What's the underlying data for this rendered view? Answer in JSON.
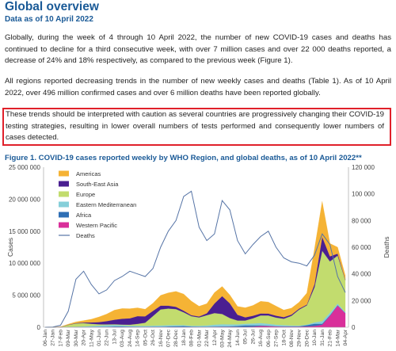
{
  "header": {
    "title": "Global overview",
    "subtitle": "Data as of 10 April 2022"
  },
  "paragraphs": {
    "p1": "Globally, during the week of 4 through 10 April 2022, the number of new COVID-19 cases and deaths has continued to decline for a third consecutive week, with over 7 million cases and over 22 000 deaths reported, a decrease of 24% and 18% respectively, as compared to the previous week (Figure 1).",
    "p2": "All regions reported decreasing trends in the number of new weekly cases and deaths (Table 1). As of 10 April 2022, over 496 million confirmed cases and over 6 million deaths have been reported globally.",
    "p3": "These trends should be interpreted with caution as several countries are progressively changing their COVID-19 testing strategies, resulting in lower overall numbers of tests performed and consequently lower numbers of cases detected."
  },
  "figure": {
    "title": "Figure 1. COVID-19 cases reported weekly by WHO Region, and global deaths, as of 10 April 2022**"
  },
  "colors": {
    "title_blue": "#1a5a97",
    "highlight_red": "#e0202a",
    "americas": "#f5b335",
    "south_east_asia": "#4a1f91",
    "europe": "#c2dc6e",
    "eastern_mediterranean": "#86cfd9",
    "africa": "#2f6fb5",
    "western_pacific": "#d92f9a",
    "deaths": "#5674a6"
  },
  "chart_data": {
    "type": "area",
    "ylabel": "Cases",
    "y2label": "Deaths",
    "ylim": [
      0,
      25000000
    ],
    "y2lim": [
      0,
      120000
    ],
    "y_ticks": [
      "0",
      "5 000 000",
      "10 000 000",
      "15 000 000",
      "20 000 000",
      "25 000 000"
    ],
    "y2_ticks": [
      "0",
      "20 000",
      "40 000",
      "60 000",
      "80 000",
      "100 000",
      "120 000"
    ],
    "x_ticks": [
      "06-Jan",
      "27-Jan",
      "17-Feb",
      "09-Mar",
      "30-Mar",
      "20-Apr",
      "11-May",
      "01-Jun",
      "22-Jun",
      "13-Jul",
      "03-Aug",
      "24-Aug",
      "14-Sep",
      "05-Oct",
      "26-Oct",
      "16-Nov",
      "07-Dec",
      "28-Dec",
      "18-Jan",
      "08-Feb",
      "01-Mar",
      "22-Mar",
      "12-Apr",
      "03-May",
      "24-May",
      "14-Jun",
      "05-Jul",
      "26-Jul",
      "16-Aug",
      "06-Sep",
      "27-Sep",
      "18-Oct",
      "08-Nov",
      "29-Nov",
      "20-Dec",
      "10-Jan",
      "31-Jan",
      "21-Feb",
      "14-Mar",
      "04-Apr"
    ],
    "legend": [
      "Americas",
      "South-East Asia",
      "Europe",
      "Eastern Mediterranean",
      "Africa",
      "Western Pacific",
      "Deaths"
    ],
    "series": [
      {
        "name": "Western Pacific",
        "values": [
          0,
          0.01,
          0.02,
          0.04,
          0.03,
          0.02,
          0.02,
          0.02,
          0.02,
          0.02,
          0.02,
          0.02,
          0.02,
          0.02,
          0.03,
          0.03,
          0.04,
          0.04,
          0.04,
          0.03,
          0.03,
          0.03,
          0.05,
          0.06,
          0.06,
          0.05,
          0.05,
          0.1,
          0.2,
          0.18,
          0.12,
          0.1,
          0.1,
          0.1,
          0.12,
          0.2,
          0.4,
          1.8,
          3.4,
          2.2
        ]
      },
      {
        "name": "Africa",
        "values": [
          0,
          0,
          0,
          0,
          0.01,
          0.02,
          0.03,
          0.04,
          0.06,
          0.1,
          0.1,
          0.08,
          0.06,
          0.04,
          0.04,
          0.05,
          0.08,
          0.12,
          0.15,
          0.08,
          0.05,
          0.05,
          0.06,
          0.06,
          0.08,
          0.15,
          0.25,
          0.2,
          0.1,
          0.06,
          0.04,
          0.03,
          0.03,
          0.04,
          0.2,
          0.35,
          0.15,
          0.08,
          0.05,
          0.03
        ]
      },
      {
        "name": "Eastern Mediterranean",
        "values": [
          0,
          0,
          0.01,
          0.02,
          0.05,
          0.1,
          0.15,
          0.2,
          0.25,
          0.25,
          0.2,
          0.15,
          0.15,
          0.15,
          0.18,
          0.2,
          0.2,
          0.18,
          0.15,
          0.12,
          0.15,
          0.2,
          0.3,
          0.35,
          0.3,
          0.25,
          0.25,
          0.3,
          0.35,
          0.3,
          0.25,
          0.2,
          0.15,
          0.12,
          0.1,
          0.2,
          0.4,
          0.4,
          0.25,
          0.15
        ]
      },
      {
        "name": "Europe",
        "values": [
          0,
          0,
          0.02,
          0.3,
          0.5,
          0.5,
          0.35,
          0.2,
          0.12,
          0.1,
          0.1,
          0.15,
          0.3,
          0.5,
          1.5,
          2.5,
          2.6,
          2.5,
          2.0,
          1.5,
          1.3,
          1.6,
          1.8,
          1.6,
          1.0,
          0.6,
          0.5,
          0.8,
          1.2,
          1.3,
          1.1,
          1.0,
          1.5,
          2.5,
          3.0,
          5.5,
          11.0,
          8.0,
          7.5,
          5.0
        ]
      },
      {
        "name": "South-East Asia",
        "values": [
          0,
          0,
          0,
          0.02,
          0.05,
          0.1,
          0.2,
          0.35,
          0.5,
          0.7,
          0.9,
          1.0,
          1.2,
          1.0,
          0.8,
          0.6,
          0.45,
          0.35,
          0.25,
          0.15,
          0.15,
          0.3,
          1.5,
          2.8,
          2.3,
          0.9,
          0.5,
          0.4,
          0.3,
          0.3,
          0.3,
          0.25,
          0.2,
          0.15,
          0.12,
          0.5,
          2.2,
          0.8,
          0.3,
          0.1
        ]
      },
      {
        "name": "Americas",
        "values": [
          0,
          0.01,
          0.01,
          0.1,
          0.2,
          0.3,
          0.5,
          0.8,
          1.1,
          1.5,
          1.6,
          1.5,
          1.3,
          1.1,
          1.2,
          1.6,
          2.0,
          2.4,
          2.6,
          2.2,
          1.6,
          1.5,
          1.7,
          1.5,
          1.3,
          1.3,
          1.5,
          1.6,
          1.9,
          1.8,
          1.5,
          1.1,
          1.0,
          1.0,
          1.8,
          5.5,
          5.5,
          2.0,
          1.0,
          0.6
        ]
      }
    ],
    "deaths": [
      0,
      200,
      1500,
      12000,
      36000,
      42000,
      32000,
      25000,
      28000,
      35000,
      38000,
      42000,
      40000,
      38000,
      44000,
      60000,
      72000,
      80000,
      98000,
      102000,
      75000,
      65000,
      70000,
      95000,
      88000,
      65000,
      55000,
      62000,
      68000,
      72000,
      60000,
      52000,
      49000,
      48000,
      46000,
      54000,
      70000,
      62000,
      38000,
      26000
    ],
    "grid": false,
    "legend_position": "top-left"
  }
}
